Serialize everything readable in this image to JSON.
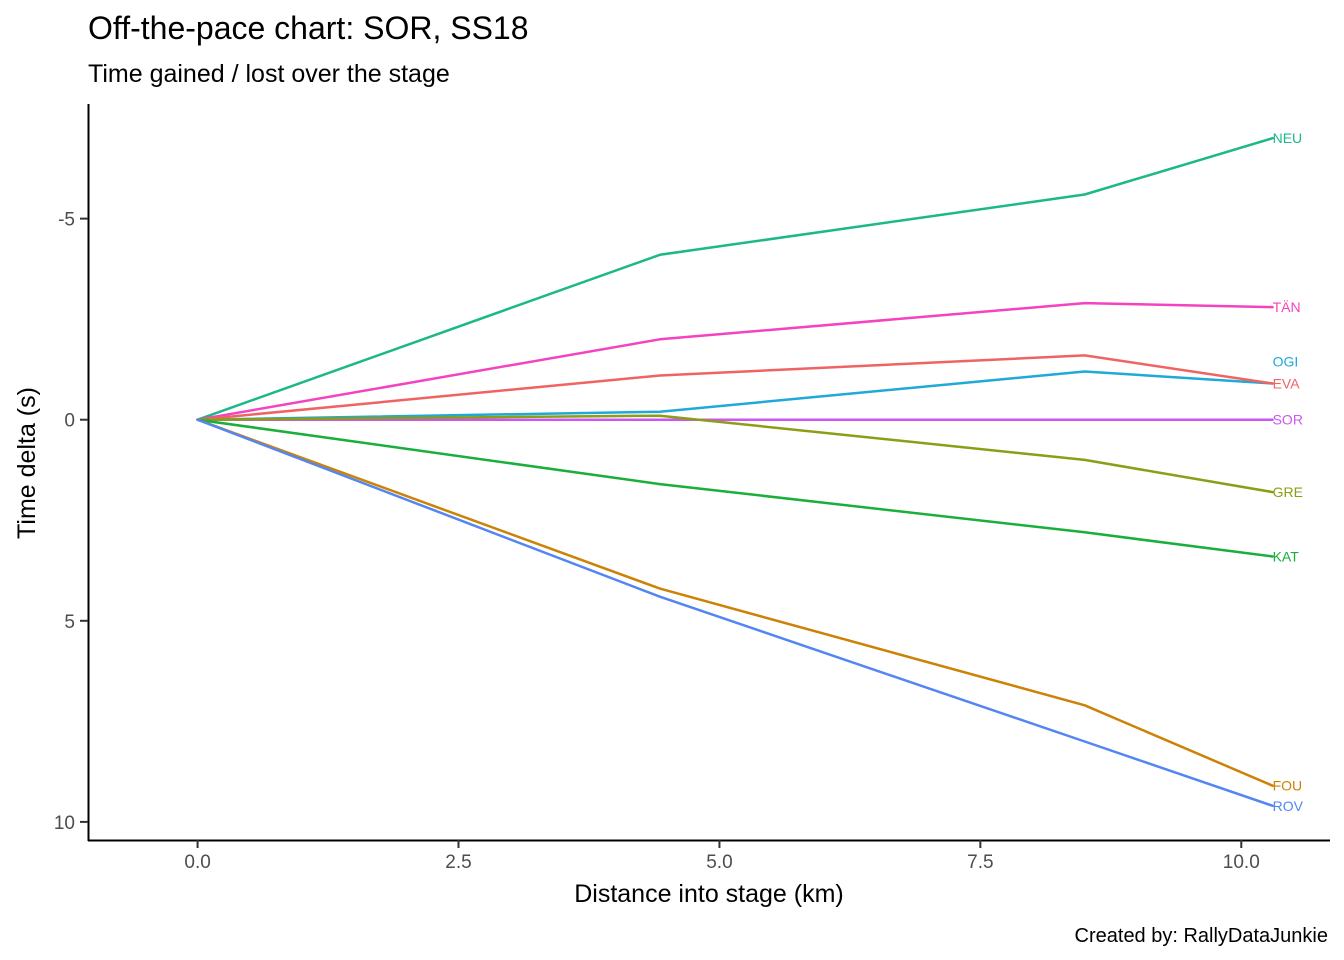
{
  "chart_data": {
    "type": "line",
    "title": "Off-the-pace chart: SOR, SS18",
    "subtitle": "Time gained / lost over the stage",
    "xlabel": "Distance into stage (km)",
    "ylabel": "Time delta (s)",
    "caption": "Created by: RallyDataJunkie",
    "xlim": [
      -1.05,
      10.85
    ],
    "ylim": [
      -7.85,
      10.45
    ],
    "y_reversed": true,
    "x_ticks": [
      {
        "value": 0,
        "label": "0.0"
      },
      {
        "value": 2.5,
        "label": "2.5"
      },
      {
        "value": 5,
        "label": "5.0"
      },
      {
        "value": 7.5,
        "label": "7.5"
      },
      {
        "value": 10,
        "label": "10.0"
      }
    ],
    "y_ticks": [
      {
        "value": -5,
        "label": "-5"
      },
      {
        "value": 0,
        "label": "0"
      },
      {
        "value": 5,
        "label": "5"
      },
      {
        "value": 10,
        "label": "10"
      }
    ],
    "grid": false,
    "legend": "none",
    "x": [
      0,
      4.43,
      8.5,
      10.3
    ],
    "series": [
      {
        "name": "NEU",
        "color": "#1cb889",
        "values": [
          0,
          -4.1,
          -5.6,
          -7.0
        ]
      },
      {
        "name": "TÄN",
        "color": "#f542c0",
        "values": [
          0,
          -2.0,
          -2.9,
          -2.8
        ]
      },
      {
        "name": "OGI",
        "color": "#1ea9d9",
        "values": [
          0,
          -0.2,
          -1.2,
          -0.9
        ]
      },
      {
        "name": "EVA",
        "color": "#ef6462",
        "values": [
          0,
          -1.1,
          -1.6,
          -0.9
        ]
      },
      {
        "name": "SOR",
        "color": "#cc56f2",
        "values": [
          0,
          0,
          0,
          0
        ]
      },
      {
        "name": "GRE",
        "color": "#8c9d16",
        "values": [
          0,
          -0.1,
          1.0,
          1.8
        ]
      },
      {
        "name": "KAT",
        "color": "#1aae3a",
        "values": [
          0,
          1.6,
          2.8,
          3.4
        ]
      },
      {
        "name": "FOU",
        "color": "#cc8205",
        "values": [
          0,
          4.2,
          7.1,
          9.1
        ]
      },
      {
        "name": "ROV",
        "color": "#5386f2",
        "values": [
          0,
          4.4,
          8.0,
          9.6
        ]
      }
    ],
    "label_offsets": {
      "OGI": -0.55,
      "EVA": 0.0
    }
  }
}
